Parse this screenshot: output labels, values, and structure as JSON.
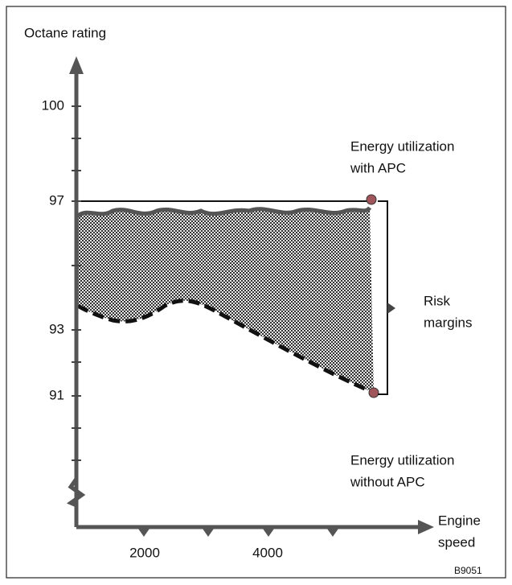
{
  "axis": {
    "y_title": "Octane rating",
    "y_ticks": [
      "100",
      "97",
      "93",
      "91"
    ],
    "x_title": [
      "Engine",
      "speed"
    ],
    "x_ticks": [
      "2000",
      "4000"
    ]
  },
  "annotations": {
    "with_apc": [
      "Energy utilization",
      "with APC"
    ],
    "risk": [
      "Risk",
      "margins"
    ],
    "without_apc": [
      "Energy utilization",
      "without APC"
    ]
  },
  "figure_id": "B9051"
}
